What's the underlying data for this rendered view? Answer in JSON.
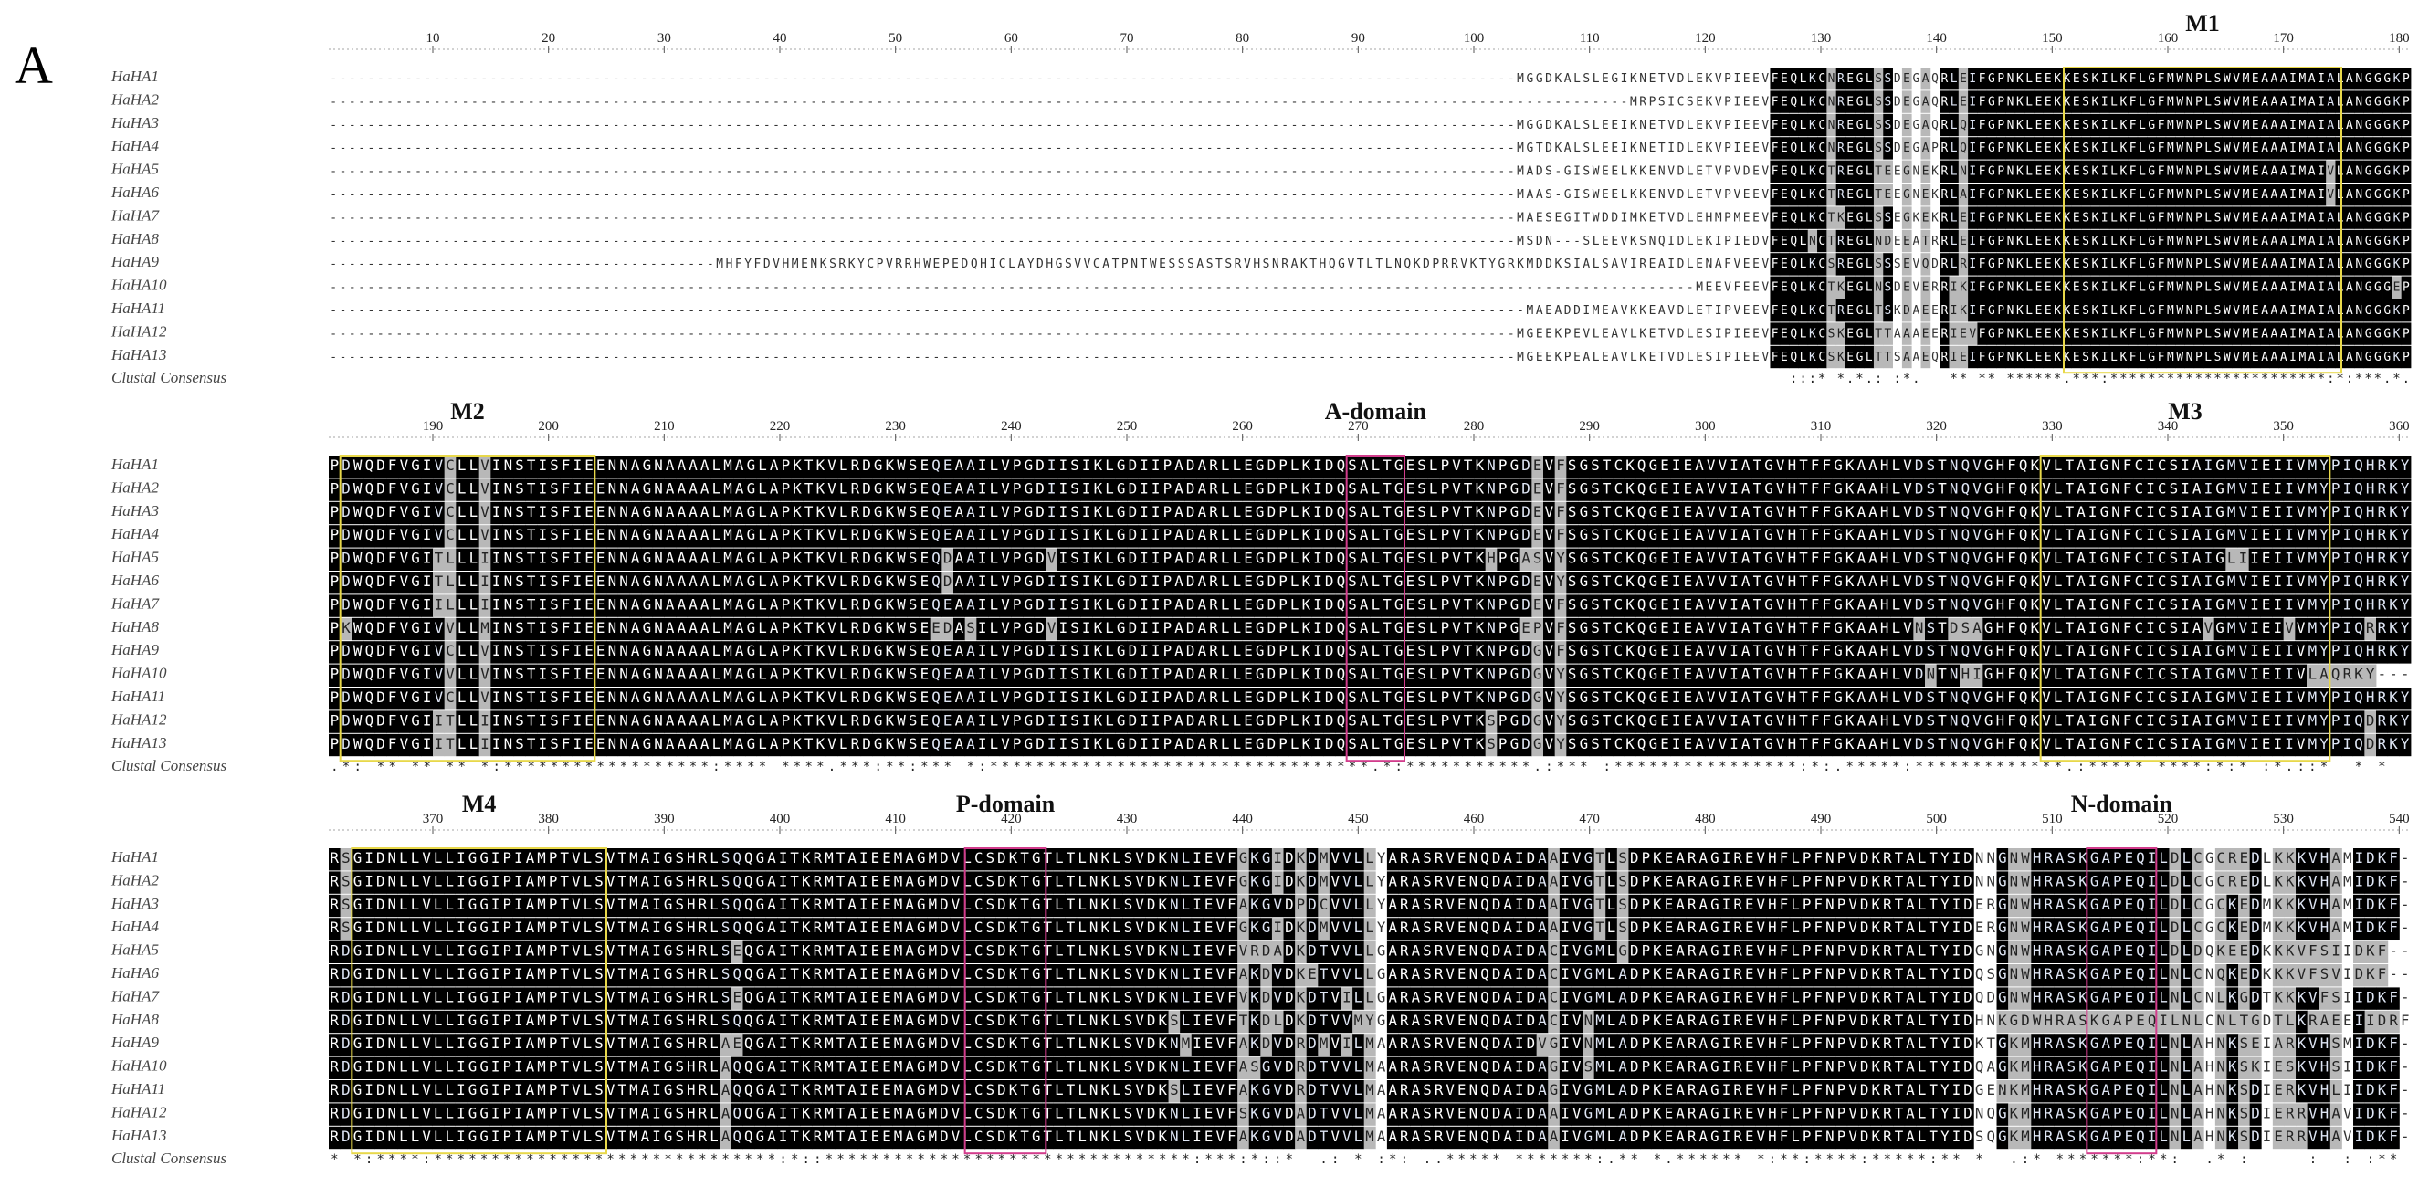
{
  "panel_label": "A",
  "species_labels": [
    "HaHA1",
    "HaHA2",
    "HaHA3",
    "HaHA4",
    "HaHA5",
    "HaHA6",
    "HaHA7",
    "HaHA8",
    "HaHA9",
    "HaHA10",
    "HaHA11",
    "HaHA12",
    "HaHA13"
  ],
  "consensus_label": "Clustal Consensus",
  "blocks": [
    {
      "ruler": {
        "start": 10,
        "end": 180,
        "step": 10
      },
      "motifs": [
        {
          "label": "M1",
          "from": 151,
          "to": 174,
          "color": "#e8d84a"
        }
      ],
      "prefix_rows": [
        "----------------------------------------------------------------------------------------------MGGDKALSLEGIKNETVDLEKVPIEEV",
        "---------------------------------------------------------------------------------------------------------MRPSICSEKVPIEEV",
        "----------------------------------------------------------------------------------------------MGGDKALSLEEIKNETVDLEKVPIEEV",
        "----------------------------------------------------------------------------------------------MGTDKALSLEEIKNETIDLEKVPIEEV",
        "----------------------------------------------------------------------------------------------MADS-GISWEELKKENVDLETVPVDEV",
        "----------------------------------------------------------------------------------------------MAAS-GISWEELKKENVDLETVPVEEV",
        "----------------------------------------------------------------------------------------------MAESEGITWDDIMKETVDLEHMPMEEV",
        "----------------------------------------------------------------------------------------------MSDN---SLEEVKSNQIDLEKIPIEDV",
        "MHFYFDVHMENKSRKYCPVRRHWEPEDQHICLAYDHGSVVCATPNTWESSSASTSRVHSNRAKTHQGVTLTLNQKDPRRVKTYGRKMDDKSIALSAVIREAIDLENAFVEEV",
        "--------------------------------------------------------------------------------------------------------------MEEVFEEV",
        "-----------------------------------------------------------------------------------------------MAEADDIMEAVKKEAVDLETIPVEEV",
        "----------------------------------------------------------------------------------------------MGEEKPEVLEAVLKETVDLESIPIEEV",
        "----------------------------------------------------------------------------------------------MGEEKPEALEAVLKETVDLESIPIEEV"
      ],
      "core_rows": [
        "FEQLKCNREGLSSDEGAQRLEIFGPNKLEEKKESKILKFLGFMWNPLSWVMEAAAIMAIALANGGGKP",
        "FEQLKCNREGLSSDEGAQRLEIFGPNKLEEKKESKILKFLGFMWNPLSWVMEAAAIMAIALANGGGKP",
        "FEQLKCNREGLSSDEGAQRLQIFGPNKLEEKKESKILKFLGFMWNPLSWVMEAAAIMAIALANGGGKP",
        "FEQLKCNREGLSSDEGAPRLQIFGPNKLEEKKESKILKFLGFMWNPLSWVMEAAAIMAIALANGGGKP",
        "FEQLKCTREGLTEEGNEKRLNIFGPNKLEEKKESKILKFLGFMWNPLSWVMEAAAIMAIVLANGGGKP",
        "FEQLKCTREGLTEEGNEKRLAIFGPNKLEEKKESKILKFLGFMWNPLSWVMEAAAIMAIVLANGGGKP",
        "FEQLKCTKEGLSSEGKEKRLEIFGPNKLEEKKESKILKFLGFMWNPLSWVMEAAAIMAIALANGGGKP",
        "FEQLNCTREGLNDEEATRRLEIFGPNKLEEKKESKILKFLGFMWNPLSWVMEAAAIMAIALANGGGKP",
        "FEQLKCSREGLSSSEVQDRLRIFGPNKLEEKKESKILKFLGFMWNPLSWVMEAAAIMAIALANGGGKP",
        "FEQLKCTKEGLNSDEVERRIKIFGPNKLEEKKESKILKFLGFMWNPLSWVMEAAAIMAIALANGGGEP",
        "FEQLKCTREGLTSKDAEERIKIFGPNKLEEKKESKILKFLGFMWNPLSWVMEAAAIMAIALANGGGKP",
        "FEQLKCSKEGLTTAAAEERIEVFGPNKLEEKKESKILKFLGFMWNPLSWVMEAAAIMAIALANGGGKP",
        "FEQLKCSKEGLTTSAAEQRIEIFGPNKLEEKKESKILKFLGFMWNPLSWVMEAAAIMAIALANGGGKP"
      ],
      "consensus": ":::* *.*.: :*.   ** ** ******.***:***********************:*:***.*.* .",
      "core_start_col": 113
    },
    {
      "ruler": {
        "start": 190,
        "end": 360,
        "step": 10
      },
      "motifs": [
        {
          "label": "M2",
          "from": 182,
          "to": 203,
          "color": "#e8d84a"
        },
        {
          "label": "A-domain",
          "from": 269,
          "to": 273,
          "color": "#d23c8c"
        },
        {
          "label": "M3",
          "from": 329,
          "to": 353,
          "color": "#e8d84a"
        }
      ],
      "rows": [
        "PDWQDFVGIVCLLVINSTISFIEENNAGNAAAALMAGLAPKTKVLRDGKWSEQEAAILVPGDIISIKLGDIIPADARLLEGDPLKIDQSALTGESLPVTKNPGDEVFSGSTCKQGEIEAVVIATGVHTFFGKAAHLVDSTNQVGHFQKVLTAIGNFCICSIAIGMVIEIIVMYPIQHRKY",
        "PDWQDFVGIVCLLVINSTISFIEENNAGNAAAALMAGLAPKTKVLRDGKWSEQEAAILVPGDIISIKLGDIIPADARLLEGDPLKIDQSALTGESLPVTKNPGDEVFSGSTCKQGEIEAVVIATGVHTFFGKAAHLVDSTNQVGHFQKVLTAIGNFCICSIAIGMVIEIIVMYPIQHRKY",
        "PDWQDFVGIVCLLVINSTISFIEENNAGNAAAALMAGLAPKTKVLRDGKWSEQEAAILVPGDIISIKLGDIIPADARLLEGDPLKIDQSALTGESLPVTKNPGDEVFSGSTCKQGEIEAVVIATGVHTFFGKAAHLVDSTNQVGHFQKVLTAIGNFCICSIAIGMVIEIIVMYPIQHRKY",
        "PDWQDFVGIVCLLVINSTISFIEENNAGNAAAALMAGLAPKTKVLRDGKWSEQEAAILVPGDIISIKLGDIIPADARLLEGDPLKIDQSALTGESLPVTKNPGDEVFSGSTCKQGEIEAVVIATGVHTFFGKAAHLVDSTNQVGHFQKVLTAIGNFCICSIAIGMVIEIIVMYPIQHRKY",
        "PDWQDFVGITLLLIINSTISFIEENNAGNAAAALMAGLAPKTKVLRDGKWSEQDAAILVPGDVISIKLGDIIPADARLLEGDPLKIDQSALTGESLPVTKHPGASVYSGSTCKQGEIEAVVIATGVHTFFGKAAHLVDSTNQVGHFQKVLTAIGNFCICSIAIGLIIEIIVMYPIQHRKY",
        "PDWQDFVGITLLLIINSTISFIEENNAGNAAAALMAGLAPKTKVLRDGKWSEQDAAILVPGDIISIKLGDIIPADARLLEGDPLKIDQSALTGESLPVTKNPGDEVYSGSTCKQGEIEAVVIATGVHTFFGKAAHLVDSTNQVGHFQKVLTAIGNFCICSIAIGMVIEIIVMYPIQHRKY",
        "PDWQDFVGIILLLIINSTISFIEENNAGNAAAALMAGLAPKTKVLRDGKWSEQEAAILVPGDIISIKLGDIIPADARLLEGDPLKIDQSALTGESLPVTKNPGDEVFSGSTCKQGEIEAVVIATGVHTFFGKAAHLVDSTNQVGHFQKVLTAIGNFCICSIAIGMVIEIIVMYPIQHRKY",
        "PKWQDFVGIVVLLMINSTISFIEENNAGNAAAALMAGLAPKTKVLRDGKWSEEDASILVPGDVISIKLGDIIPADARLLEGDPLKIDQSALTGESLPVTKNPGEPVFSGSTCKQGEIEAVVIATGVHTFFGKAAHLVNSTDSAGHFQKVLTAIGNFCICSIAVGMVIEIVVMYPIQRRKY",
        "PDWQDFVGIVCLLVINSTISFIEENNAGNAAAALMAGLAPKTKVLRDGKWSEQEAAILVPGDIISIKLGDIIPADARLLEGDPLKIDQSALTGESLPVTKNPGDGVFSGSTCKQGEIEAVVIATGVHTFFGKAAHLVDSTNQVGHFQKVLTAIGNFCICSIAIGMVIEIIVMYPIQHRKY",
        "PDWQDFVGIVVLLVINSTISFIEENNAGNAAAALMAGLAPKTKVLRDGKWSEQEAAILVPGDIISIKLGDIIPADARLLEGDPLKIDQSALTGESLPVTKNPGDGVYSGSTCKQGEIEAVVIATGVHTFFGKAAHLVDNTNHIGHFQKVLTAIGNFCICSIAIGMVIEIIVLAQRKY",
        "PDWQDFVGIVCLLVINSTISFIEENNAGNAAAALMAGLAPKTKVLRDGKWSEQEAAILVPGDIISIKLGDIIPADARLLEGDPLKIDQSALTGESLPVTKNPGDGVYSGSTCKQGEIEAVVIATGVHTFFGKAAHLVDSTNQVGHFQKVLTAIGNFCICSIAIGMVIEIIVMYPIQHRKY",
        "PDWQDFVGIITLLIINSTISFIEENNAGNAAAALMAGLAPKTKVLRDGKWSEQEAAILVPGDIISIKLGDIIPADARLLEGDPLKIDQSALTGESLPVTKSPGDGVYSGSTCKQGEIEAVVIATGVHTFFGKAAHLVDSTNQVGHFQKVLTAIGNFCICSIAIGMVIEIIVMYPIQDRKY",
        "PDWQDFVGIITLLIINSTISFIEENNAGNAAAALMAGLAPKTKVLRDGKWSEQEAAILVPGDIISIKLGDIIPADARLLEGDPLKIDQSALTGESLPVTKSPGDGVYSGSTCKQGEIEAVVIATGVHTFFGKAAHLVDSTNQVGHFQKVLTAIGNFCICSIAIGMVIEIIVMYPIQDRKY"
      ],
      "consensus": ".*: ** ** ** *:******************:**** ****.***:**:*** *:*********************************.*:***********.:*** :****************:*:.*****:*************.:***** ****:*:* :*.::*  * *",
      "core_start_col": 0
    },
    {
      "ruler": {
        "start": 370,
        "end": 540,
        "step": 10
      },
      "motifs": [
        {
          "label": "M4",
          "from": 363,
          "to": 384,
          "color": "#e8d84a"
        },
        {
          "label": "P-domain",
          "from": 416,
          "to": 422,
          "color": "#d23c8c"
        },
        {
          "label": "N-domain",
          "from": 513,
          "to": 518,
          "color": "#d23c8c"
        }
      ],
      "rows": [
        "RSGIDNLLVLLIGGIPIAMPTVLSVTMAIGSHRLSQQGAITKRMTAIEEMAGMDVLCSDKTGTLTLNKLSVDKNLIEVFGKGIDKDMVVLLYARASRVENQDAIDAAIVGTLSDPKEARAGIREVHFLPFNPVDKRTALTYIDNNGNWHRASKGAPEQILDLCGCREDLKKKVHAMIDKF",
        "RSGIDNLLVLLIGGIPIAMPTVLSVTMAIGSHRLSQQGAITKRMTAIEEMAGMDVLCSDKTGTLTLNKLSVDKNLIEVFGKGIDKDMVVLLYARASRVENQDAIDAAIVGTLSDPKEARAGIREVHFLPFNPVDKRTALTYIDNNGNWHRASKGAPEQILDLCGCREDLKKKVHAMIDKF",
        "RSGIDNLLVLLIGGIPIAMPTVLSVTMAIGSHRLSQQGAITKRMTAIEEMAGMDVLCSDKTGTLTLNKLSVDKNLIEVFAKGVDPDCVVLLYARASRVENQDAIDAAIVGTLSDPKEARAGIREVHFLPFNPVDKRTALTYIDERGNWHRASKGAPEQILDLCGCKEDMKKKVHAMIDKF",
        "RSGIDNLLVLLIGGIPIAMPTVLSVTMAIGSHRLSQQGAITKRMTAIEEMAGMDVLCSDKTGTLTLNKLSVDKNLIEVFGKGIDKDMVVLLYARASRVENQDAIDAAIVGTLSDPKEARAGIREVHFLPFNPVDKRTALTYIDERGNWHRASKGAPEQILDLCGCKEDMKKKVHAMIDKF",
        "RDGIDNLLVLLIGGIPIAMPTVLSVTMAIGSHRLSEQGAITKRMTAIEEMAGMDVLCSDKTGTLTLNKLSVDKNLIEVFVRDADKDTVVLLGARASRVENQDAIDACIVGMLGDPKEARAGIREVHFLPFNPVDKRTALTYIDGNGNWHRASKGAPEQILDLDQKEEDKKKVFSIIDKF",
        "RDGIDNLLVLLIGGIPIAMPTVLSVTMAIGSHRLSQQGAITKRMTAIEEMAGMDVLCSDKTGTLTLNKLSVDKNLIEVFAKDVDKETVVLLGARASRVENQDAIDACIVGMLADPKEARAGIREVHFLPFNPVDKRTALTYIDQSGNWHRASKGAPEQILNLCNQKEDKKKVFSVIDKF",
        "RDGIDNLLVLLIGGIPIAMPTVLSVTMAIGSHRLSEQGAITKRMTAIEEMAGMDVLCSDKTGTLTLNKLSVDKNLIEVFVKDVDKDTVILLGARASRVENQDAIDACIVGMLADPKEARAGIREVHFLPFNPVDKRTALTYIDQDGNWHRASKGAPEQILNLCNLKGDTKKKVFSIIDKF",
        "RDGIDNLLVLLIGGIPIAMPTVLSVTMAIGSHRLSQQGAITKRMTAIEEMAGMDVLCSDKTGTLTLNKLSVDKSLIEVFTKDLDKDTVVMYGARASRVENQDAIDACIVNMLADPKEARAGIREVHFLPFNPVDKRTALTYIDHNKGDWHRASKGAPEQILNLCNLTGDTLKRAEEIIDRF",
        "RDGIDNLLVLLIGGIPIAMPTVLSVTMAIGSHRLAEQGAITKRMTAIEEMAGMDVLCSDKTGTLTLNKLSVDKNMIEVFAKDVDRDMVILMAARASRVENQDAIDVGIVNMLADPKEARAGIREVHFLPFNPVDKRTALTYIDKTGKMHRASKGAPEQILNLAHNKSEIARKVHSMIDKF",
        "RDGIDNLLVLLIGGIPIAMPTVLSVTMAIGSHRLAQQGAITKRMTAIEEMAGMDVLCSDKTGTLTLNKLSVDKNLIEVFASGVDRDTVVLMAARASRVENQDAIDAGIVSMLADPKEARAGIREVHFLPFNPVDKRTALTYIDQAGKMHRASKGAPEQILNLAHNKSKIESKVHSIIDKF",
        "RDGIDNLLVLLIGGIPIAMPTVLSVTMAIGSHRLAQQGAITKRMTAIEEMAGMDVLCSDKTGTLTLNKLSVDKSLIEVFAKGVDRDTVVLMAARASRVENQDAIDAGIVGMLADPKEARAGIREVHFLPFNPVDKRTALTYIDGENKMHRASKGAPEQILNLAHNKSDIERKVHLIIDKF",
        "RDGIDNLLVLLIGGIPIAMPTVLSVTMAIGSHRLAQQGAITKRMTAIEEMAGMDVLCSDKTGTLTLNKLSVDKNLIEVFSKGVDADTVVLMAARASRVENQDAIDAAIVGMLADPKEARAGIREVHFLPFNPVDKRTALTYIDNQGKMHRASKGAPEQILNLAHNKSDIERRVHAVIDKF",
        "RDGIDNLLVLLIGGIPIAMPTVLSVTMAIGSHRLAQQGAITKRMTAIEEMAGMDVLCSDKTGTLTLNKLSVDKNLIEVFAKGVDADTVVLMAARASRVENQDAIDAAIVGMLADPKEARAGIREVHFLPFNPVDKRTALTYIDSQGKMHRASKGAPEQILNLAHNKSDIERRVHAVIDKF"
      ],
      "consensus": "* *:****:******************************:*::********************************:***:*::*  .: * :*: ..***** *******:.** *.****** *:**:****:*****:** *  .:* *******:**:  .* :     :  : :** *",
      "core_start_col": 0
    }
  ]
}
